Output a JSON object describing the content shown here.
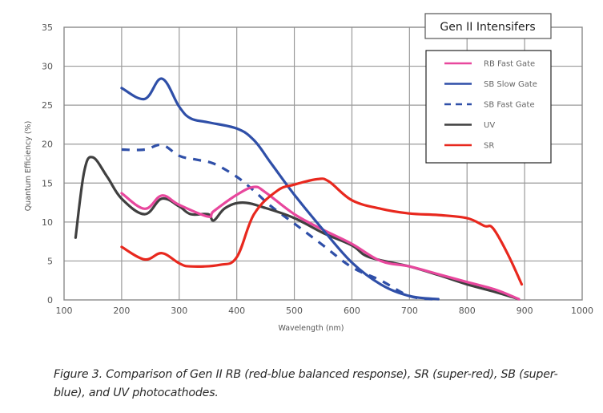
{
  "chart_data": {
    "type": "line",
    "title": "",
    "legend_title": "Gen II Intensifers",
    "legend_position": "top-right",
    "xlabel": "Wavelength (nm)",
    "ylabel": "Quantum Efficiency  (%)",
    "xlim": [
      100,
      1000
    ],
    "ylim": [
      0,
      35
    ],
    "xticks": [
      100,
      200,
      300,
      400,
      500,
      600,
      700,
      800,
      900,
      1000
    ],
    "yticks": [
      0,
      5,
      10,
      15,
      20,
      25,
      30,
      35
    ],
    "grid": true,
    "series": [
      {
        "name": "RB Fast Gate",
        "color": "#e8479d",
        "dash": false,
        "x": [
          200,
          240,
          270,
          300,
          350,
          360,
          400,
          430,
          450,
          500,
          550,
          600,
          650,
          700,
          750,
          800,
          850,
          890
        ],
        "y": [
          13.7,
          11.7,
          13.4,
          12.2,
          10.7,
          11.4,
          13.5,
          14.5,
          13.8,
          11.0,
          9.0,
          7.2,
          5.0,
          4.3,
          3.3,
          2.3,
          1.3,
          0.1
        ]
      },
      {
        "name": "SB Slow Gate",
        "color": "#2f4fa8",
        "dash": false,
        "x": [
          200,
          240,
          270,
          300,
          320,
          350,
          400,
          430,
          460,
          500,
          550,
          600,
          650,
          700,
          750
        ],
        "y": [
          27.2,
          25.8,
          28.4,
          24.8,
          23.3,
          22.8,
          22.0,
          20.5,
          17.5,
          13.5,
          9.0,
          4.8,
          2.0,
          0.5,
          0.1
        ]
      },
      {
        "name": "SB Fast Gate",
        "color": "#2f4fa8",
        "dash": true,
        "x": [
          200,
          240,
          270,
          300,
          330,
          360,
          400,
          430,
          460,
          500,
          550,
          600,
          650,
          700,
          740
        ],
        "y": [
          19.3,
          19.3,
          19.9,
          18.5,
          18.0,
          17.5,
          15.8,
          14.0,
          12.0,
          9.8,
          7.0,
          4.2,
          2.5,
          0.5,
          0.1
        ]
      },
      {
        "name": "UV",
        "color": "#404040",
        "dash": false,
        "x": [
          120,
          135,
          150,
          175,
          200,
          240,
          270,
          300,
          320,
          350,
          360,
          380,
          410,
          450,
          500,
          550,
          600,
          630,
          700,
          750,
          800,
          850,
          890
        ],
        "y": [
          8.0,
          16.5,
          18.3,
          15.8,
          13.0,
          11.0,
          13.0,
          12.0,
          11.0,
          11.0,
          10.2,
          11.8,
          12.5,
          11.8,
          10.5,
          8.6,
          7.0,
          5.5,
          4.3,
          3.2,
          2.0,
          1.0,
          0.1
        ]
      },
      {
        "name": "SR",
        "color": "#e8281e",
        "dash": false,
        "x": [
          200,
          240,
          270,
          300,
          320,
          370,
          400,
          430,
          470,
          500,
          540,
          560,
          600,
          650,
          700,
          750,
          800,
          830,
          845,
          870,
          895
        ],
        "y": [
          6.8,
          5.2,
          6.0,
          4.7,
          4.3,
          4.5,
          5.5,
          11.0,
          14.0,
          14.8,
          15.5,
          15.2,
          12.8,
          11.7,
          11.1,
          10.9,
          10.5,
          9.5,
          9.2,
          6.0,
          2.0
        ]
      }
    ]
  },
  "caption": "Figure 3. Comparison of Gen II RB (red-blue balanced response), SR (super-red), SB (super-blue), and UV photocathodes."
}
